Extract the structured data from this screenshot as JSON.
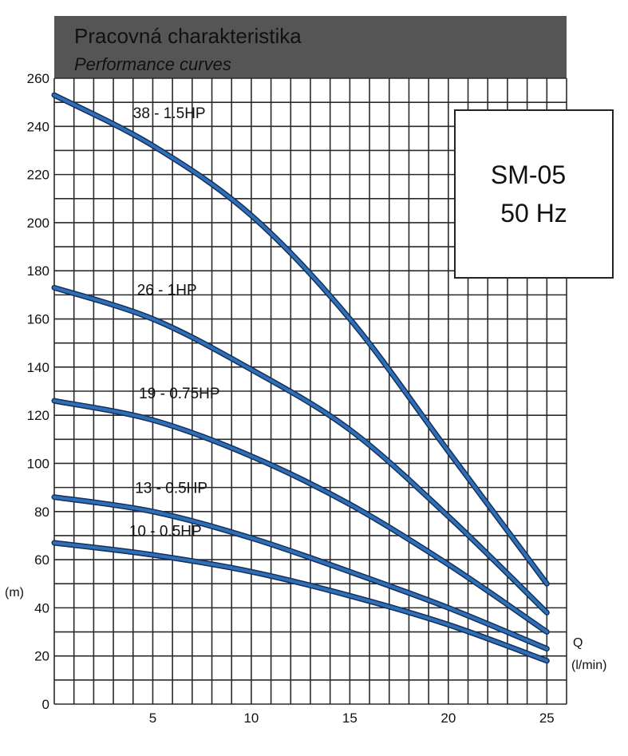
{
  "header": {
    "title": "Pracovná charakteristika",
    "subtitle": "Performance curves"
  },
  "model_box": {
    "model": "SM-05",
    "frequency": "50 Hz"
  },
  "axes": {
    "y_unit": "(m)",
    "x_symbol": "Q",
    "x_unit": "(l/min)"
  },
  "colors": {
    "curve": "#2f6fb8",
    "curve_outline": "#15305a",
    "header_bg": "#555555",
    "grid": "#2a2a2a"
  },
  "chart_data": {
    "type": "line",
    "title": "Pracovná charakteristika",
    "subtitle": "Performance curves",
    "xlabel": "Q (l/min)",
    "ylabel": "(m)",
    "xlim": [
      0,
      26
    ],
    "ylim": [
      0,
      260
    ],
    "xticks": [
      5,
      10,
      15,
      20,
      25
    ],
    "yticks": [
      0,
      20,
      40,
      60,
      80,
      100,
      120,
      140,
      160,
      180,
      200,
      220,
      240,
      260
    ],
    "grid": true,
    "series": [
      {
        "name": "38 - 1.5HP",
        "x": [
          0,
          5,
          10,
          15,
          20,
          25
        ],
        "y": [
          253,
          232,
          203,
          160,
          105,
          50
        ]
      },
      {
        "name": "26 - 1HP",
        "x": [
          0,
          5,
          10,
          15,
          20,
          25
        ],
        "y": [
          173,
          160,
          139,
          114,
          78,
          38
        ]
      },
      {
        "name": "19 - 0.75HP",
        "x": [
          0,
          5,
          10,
          15,
          20,
          25
        ],
        "y": [
          126,
          118,
          103,
          83,
          58,
          30
        ]
      },
      {
        "name": "13 - 0.5HP",
        "x": [
          0,
          5,
          10,
          15,
          20,
          25
        ],
        "y": [
          86,
          80,
          69,
          55,
          40,
          23
        ]
      },
      {
        "name": "10 - 0.5HP",
        "x": [
          0,
          5,
          10,
          15,
          20,
          25
        ],
        "y": [
          67,
          62,
          55,
          45,
          33,
          18
        ]
      }
    ]
  }
}
